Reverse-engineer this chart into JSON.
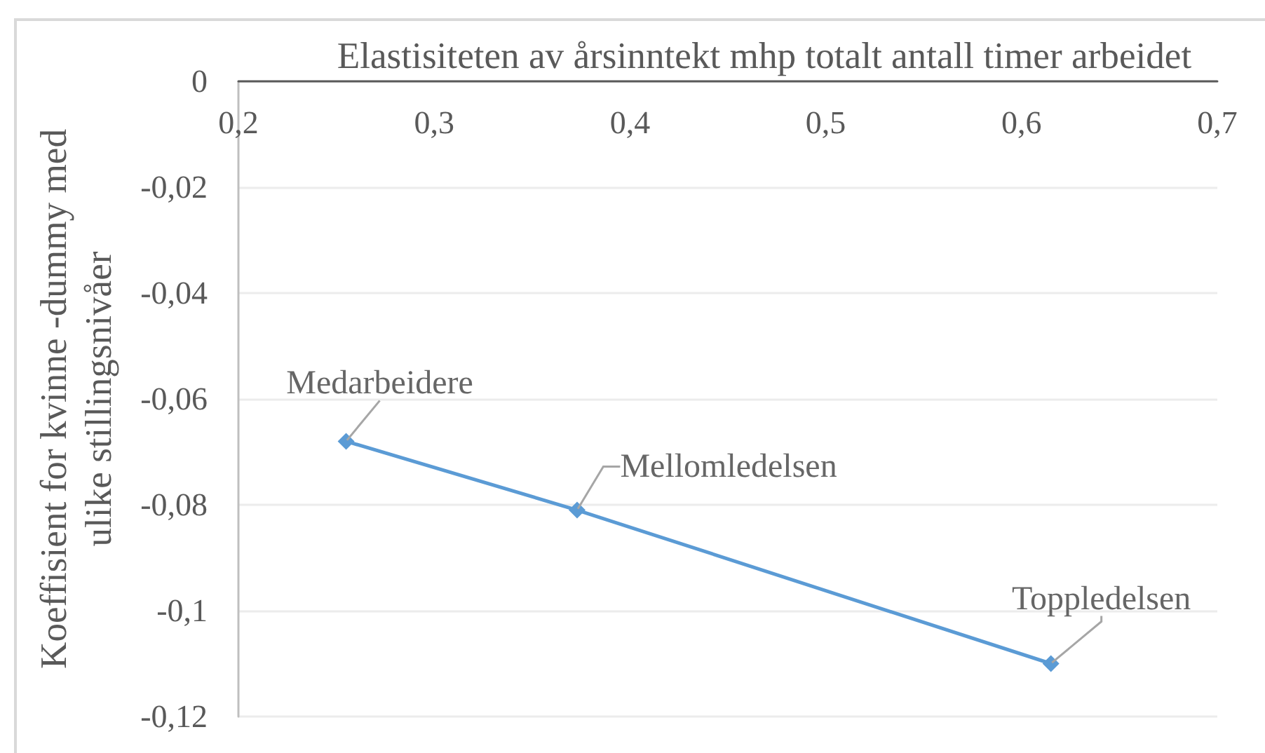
{
  "chart_data": {
    "type": "line",
    "xlabel": "Elastisiteten av årsinntekt mhp totalt antall timer arbeidet",
    "ylabel": "Koeffisient for kvinne -dummy med ulike stillingsnivåer",
    "x": [
      0.255,
      0.373,
      0.615
    ],
    "series": [
      {
        "color": "#5b9bd5",
        "values": [
          -0.068,
          -0.081,
          -0.11
        ]
      }
    ],
    "xlim": [
      0.2,
      0.7
    ],
    "xticks": [
      {
        "value": 0.2,
        "label": "0,2"
      },
      {
        "value": 0.3,
        "label": "0,3"
      },
      {
        "value": 0.4,
        "label": "0,4"
      },
      {
        "value": 0.5,
        "label": "0,5"
      },
      {
        "value": 0.6,
        "label": "0,6"
      },
      {
        "value": 0.7,
        "label": "0,7"
      }
    ],
    "ylim": [
      -0.12,
      0
    ],
    "yticks": [
      {
        "value": -0.12,
        "label": "-0,12"
      },
      {
        "value": -0.1,
        "label": "-0,1"
      },
      {
        "value": -0.08,
        "label": "-0,08"
      },
      {
        "value": -0.06,
        "label": "-0,06"
      },
      {
        "value": -0.04,
        "label": "-0,04"
      },
      {
        "value": -0.02,
        "label": "-0,02"
      },
      0
    ],
    "grid": "y",
    "marker": "diamond",
    "line_style": "solid",
    "annotations": [
      {
        "text": "Medarbeidere",
        "x": 0.255,
        "y": -0.068
      },
      {
        "text": "Mellomledelsen",
        "x": 0.373,
        "y": -0.081
      },
      {
        "text": "Toppledelsen",
        "x": 0.615,
        "y": -0.11
      }
    ]
  }
}
